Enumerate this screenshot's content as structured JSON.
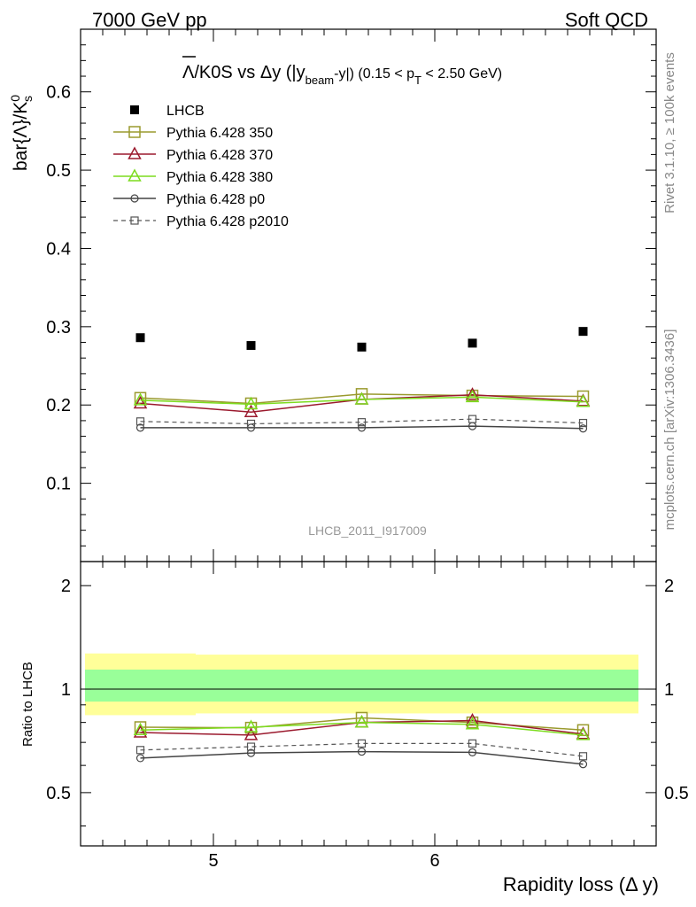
{
  "header": {
    "left": "7000 GeV pp",
    "right": "Soft QCD"
  },
  "side": {
    "rivet": "Rivet 3.1.10, ≥ 100k events",
    "mcplots": "mcplots.cern.ch [arXiv:1306.3436]"
  },
  "main": {
    "title": {
      "overline": "Λ",
      "part1": "/K0S vs Δy (|y",
      "sub1": "beam",
      "part2": "-y|) (0.15 < p",
      "sub2": "T",
      "part3": " < 2.50 GeV)"
    },
    "ylabel": {
      "part1": "bar{Λ}/K",
      "sup": "0",
      "sub": "s"
    },
    "watermark": "LHCB_2011_I917009"
  },
  "ratio": {
    "ylabel": "Ratio to LHCB"
  },
  "xlabel": "Rapidity loss (Δ y)",
  "chart_data": {
    "type": "scatter",
    "x": [
      4.67,
      5.17,
      5.67,
      6.17,
      6.67
    ],
    "xlim": [
      4.4,
      7.0
    ],
    "x_ticks": [
      "5",
      "6"
    ],
    "main": {
      "ylim": [
        0.0,
        0.68
      ],
      "y_ticks": [
        "0.1",
        "0.2",
        "0.3",
        "0.4",
        "0.5",
        "0.6"
      ],
      "series": [
        {
          "name": "LHCB",
          "values": [
            0.286,
            0.276,
            0.274,
            0.279,
            0.294
          ],
          "color": "#000000",
          "marker": "filled-square",
          "line": "none"
        },
        {
          "name": "Pythia 6.428 350",
          "values": [
            0.209,
            0.202,
            0.214,
            0.212,
            0.211
          ],
          "color": "#9a9a2e",
          "marker": "open-square",
          "line": "solid"
        },
        {
          "name": "Pythia 6.428 370",
          "values": [
            0.202,
            0.191,
            0.207,
            0.213,
            0.205
          ],
          "color": "#9b1a2e",
          "marker": "open-triangle",
          "line": "solid"
        },
        {
          "name": "Pythia 6.428 380",
          "values": [
            0.206,
            0.201,
            0.207,
            0.21,
            0.204
          ],
          "color": "#7ddc1f",
          "marker": "open-triangle",
          "line": "solid"
        },
        {
          "name": "Pythia 6.428 p0",
          "values": [
            0.171,
            0.171,
            0.171,
            0.173,
            0.17
          ],
          "color": "#444444",
          "marker": "open-circle",
          "line": "solid"
        },
        {
          "name": "Pythia 6.428 p2010",
          "values": [
            0.179,
            0.176,
            0.178,
            0.182,
            0.177
          ],
          "color": "#555555",
          "marker": "open-square-small",
          "line": "dashed"
        }
      ]
    },
    "ratio": {
      "ylim": [
        0.35,
        2.35
      ],
      "scale": "log",
      "y_ticks": [
        "0.5",
        "1",
        "2"
      ],
      "bands": {
        "edges": [
          4.42,
          4.92,
          5.42,
          5.92,
          6.42,
          6.92
        ],
        "outer": [
          [
            0.84,
            1.27
          ],
          [
            0.85,
            1.26
          ],
          [
            0.85,
            1.26
          ],
          [
            0.85,
            1.26
          ],
          [
            0.85,
            1.26
          ]
        ],
        "inner": [
          [
            0.92,
            1.14
          ],
          [
            0.92,
            1.14
          ],
          [
            0.92,
            1.14
          ],
          [
            0.92,
            1.14
          ],
          [
            0.92,
            1.14
          ]
        ],
        "outer_color": "#ffff99",
        "inner_color": "#99ff99"
      },
      "series": [
        {
          "name": "Pythia 6.428 350",
          "values": [
            0.775,
            0.772,
            0.825,
            0.8,
            0.76
          ],
          "color": "#9a9a2e",
          "marker": "open-square",
          "line": "solid"
        },
        {
          "name": "Pythia 6.428 370",
          "values": [
            0.748,
            0.735,
            0.8,
            0.81,
            0.74
          ],
          "color": "#9b1a2e",
          "marker": "open-triangle",
          "line": "solid"
        },
        {
          "name": "Pythia 6.428 380",
          "values": [
            0.76,
            0.775,
            0.8,
            0.79,
            0.735
          ],
          "color": "#7ddc1f",
          "marker": "open-triangle",
          "line": "solid"
        },
        {
          "name": "Pythia 6.428 p0",
          "values": [
            0.63,
            0.652,
            0.658,
            0.655,
            0.605
          ],
          "color": "#444444",
          "marker": "open-circle",
          "line": "solid"
        },
        {
          "name": "Pythia 6.428 p2010",
          "values": [
            0.665,
            0.68,
            0.695,
            0.695,
            0.638
          ],
          "color": "#555555",
          "marker": "open-square-small",
          "line": "dashed"
        }
      ]
    },
    "legend": "top-left"
  }
}
